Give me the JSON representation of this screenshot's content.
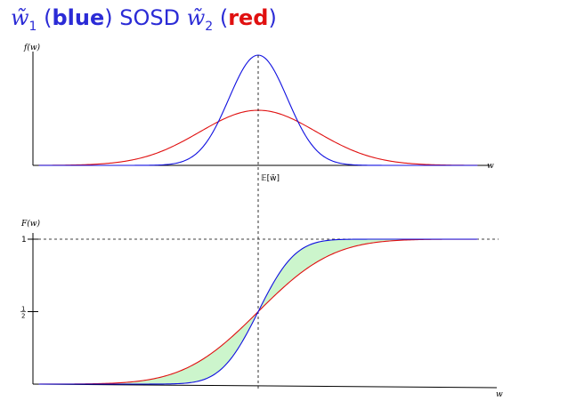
{
  "title": {
    "w1": "w̃",
    "w1_sub": "1",
    "open1": " (",
    "blue_word": "blue",
    "close1": ") SOSD ",
    "w2": "w̃",
    "w2_sub": "2",
    "open2": " (",
    "red_word": "red",
    "close2": ")"
  },
  "colors": {
    "w1": "#1010e0",
    "w2": "#e01010",
    "title": "#2b2bd6",
    "shade": "#ccf5cc"
  },
  "chart_data": [
    {
      "type": "line",
      "title": "",
      "ylabel": "f(w)",
      "xlabel": "w",
      "mean_label": "𝔼[w̃]",
      "x_domain": [
        -3,
        3
      ],
      "mean": 0,
      "series": [
        {
          "ref": "w1",
          "distribution": "normal",
          "mean": 0,
          "sd": 0.4
        },
        {
          "ref": "w2",
          "distribution": "normal",
          "mean": 0,
          "sd": 0.8
        }
      ]
    },
    {
      "type": "line",
      "title": "",
      "ylabel": "F(w)",
      "xlabel": "w",
      "yticks": [
        {
          "value": 0.5,
          "label_num": "1",
          "label_den": "2"
        },
        {
          "value": 1,
          "label": "1"
        }
      ],
      "ylim": [
        0,
        1
      ],
      "x_domain": [
        -3,
        3
      ],
      "series": [
        {
          "ref": "w1",
          "distribution": "normal_cdf",
          "mean": 0,
          "sd": 0.4
        },
        {
          "ref": "w2",
          "distribution": "normal_cdf",
          "mean": 0,
          "sd": 0.8
        }
      ],
      "shading": "area between the two CDFs"
    }
  ]
}
